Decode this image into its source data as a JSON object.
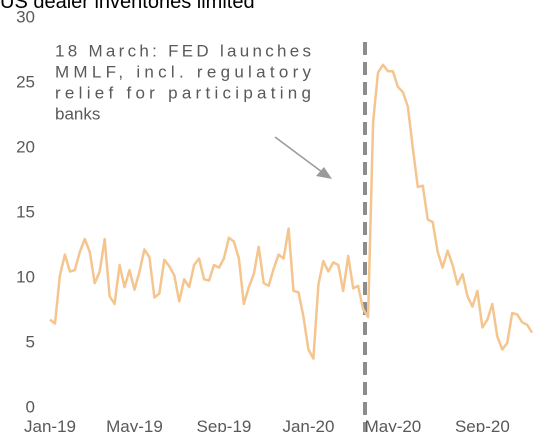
{
  "chart_data": {
    "type": "line",
    "title": "US dealer inventories limited",
    "categories": [
      "Jan-19",
      null,
      null,
      null,
      null,
      null,
      null,
      null,
      null,
      null,
      null,
      null,
      null,
      null,
      null,
      null,
      null,
      "May-19",
      null,
      null,
      null,
      null,
      null,
      null,
      null,
      null,
      null,
      null,
      null,
      null,
      null,
      null,
      null,
      null,
      null,
      "Sep-19",
      null,
      null,
      null,
      null,
      null,
      null,
      null,
      null,
      null,
      null,
      null,
      null,
      null,
      null,
      null,
      null,
      "Jan-20",
      null,
      null,
      null,
      null,
      null,
      null,
      null,
      null,
      null,
      null,
      null,
      null,
      null,
      null,
      null,
      null,
      "May-20",
      null,
      null,
      null,
      null,
      null,
      null,
      null,
      null,
      null,
      null,
      null,
      null,
      null,
      null,
      null,
      null,
      null,
      "Sep-20",
      null,
      null,
      null,
      null,
      null,
      null,
      null,
      null,
      null,
      null
    ],
    "series": [
      {
        "name": "US dealer inventories",
        "color": "#f5c58f",
        "values": [
          6.8,
          6.5,
          10.2,
          11.8,
          10.5,
          10.6,
          12,
          13,
          12,
          9.6,
          10.5,
          13,
          8.6,
          8,
          11,
          9.3,
          10.6,
          9.1,
          10.5,
          12.2,
          11.6,
          8.5,
          8.8,
          11.4,
          10.9,
          10.2,
          8.2,
          9.9,
          9.3,
          11,
          11.5,
          9.9,
          9.8,
          11,
          10.8,
          11.5,
          13.1,
          12.8,
          11.5,
          8,
          9.3,
          10.3,
          12.4,
          9.6,
          9.4,
          10.7,
          11.8,
          11.5,
          13.8,
          9,
          8.9,
          7,
          4.5,
          3.8,
          9.5,
          11.3,
          10.5,
          11.2,
          11,
          9,
          11.7,
          9.2,
          9.4,
          7.6,
          7,
          22,
          25.8,
          26.4,
          25.9,
          25.9,
          24.7,
          24.3,
          23.2,
          20,
          17,
          17.1,
          14.5,
          14.3,
          12,
          10.8,
          12.1,
          11,
          9.5,
          10.3,
          8.6,
          7.8,
          9,
          6.2,
          6.8,
          8,
          5.5,
          4.5,
          5,
          7.3,
          7.2,
          6.6,
          6.4,
          5.8
        ]
      }
    ],
    "ylim": [
      0,
      30
    ],
    "yticks": [
      0,
      5,
      10,
      15,
      20,
      25,
      30
    ],
    "grid": false,
    "annotation": [
      "18 March: FED launches",
      "MMLF, incl. regulatory",
      "relief for participating",
      "banks"
    ]
  }
}
